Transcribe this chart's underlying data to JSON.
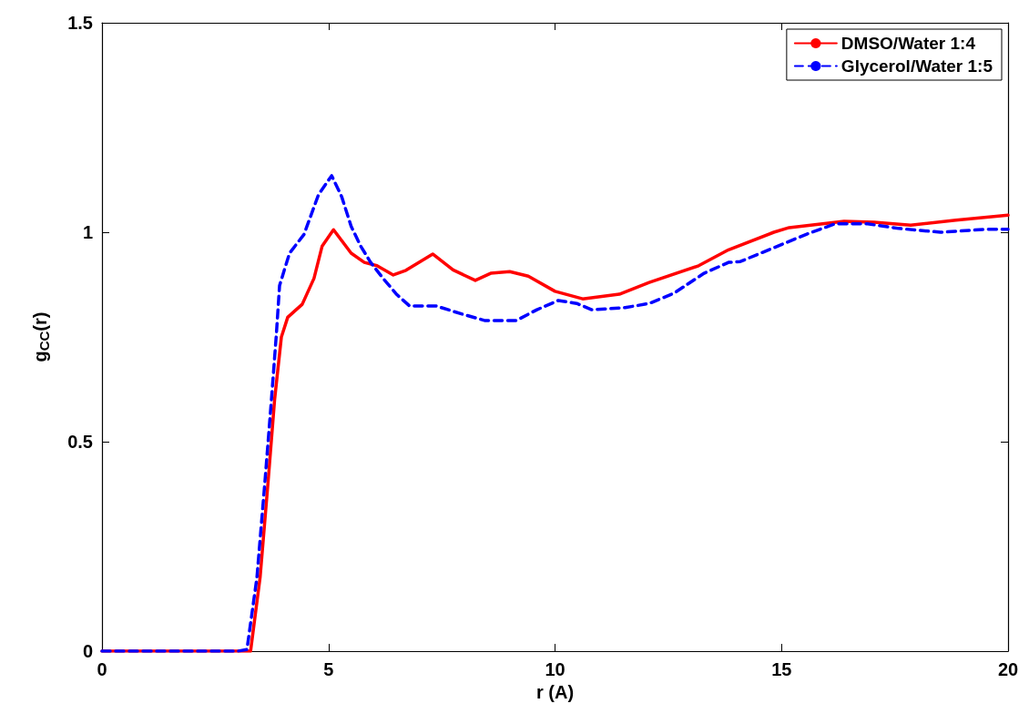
{
  "chart_data": {
    "type": "line",
    "xlabel": "r (A)",
    "ylabel": "g$_{CC}$(r)",
    "xlim": [
      0,
      20
    ],
    "xticks": [
      0,
      5,
      10,
      15,
      20
    ],
    "ylim": [
      0,
      1.5
    ],
    "yticks": [
      0,
      0.5,
      1,
      1.5
    ],
    "grid": false,
    "legend": "top right",
    "marker": "none",
    "series": [
      {
        "name": "DMSO/Water 1:4",
        "color": "#ff0000",
        "line_style": "solid",
        "x": [
          0,
          1,
          2,
          3,
          3.28,
          3.49,
          3.67,
          3.81,
          3.96,
          4.1,
          4.42,
          4.68,
          4.86,
          5.11,
          5.5,
          5.79,
          6.07,
          6.43,
          6.71,
          7.3,
          7.75,
          8.24,
          8.58,
          9.0,
          9.41,
          10.0,
          10.61,
          11.42,
          12.08,
          13.17,
          13.83,
          14.83,
          15.17,
          16.38,
          17.04,
          17.85,
          18.85,
          20
        ],
        "values": [
          0,
          0,
          0,
          0,
          0,
          0.176,
          0.409,
          0.6,
          0.75,
          0.797,
          0.828,
          0.89,
          0.967,
          1.006,
          0.95,
          0.928,
          0.92,
          0.898,
          0.909,
          0.948,
          0.91,
          0.885,
          0.902,
          0.906,
          0.895,
          0.859,
          0.841,
          0.852,
          0.88,
          0.92,
          0.958,
          1.0,
          1.011,
          1.026,
          1.024,
          1.017,
          1.029,
          1.041
        ]
      },
      {
        "name": "Glycerol/Water 1:5",
        "color": "#0000ff",
        "line_style": "dashed",
        "x": [
          0,
          1,
          2,
          3,
          3.2,
          3.42,
          3.6,
          3.74,
          3.85,
          3.92,
          4.14,
          4.46,
          4.78,
          5.07,
          5.29,
          5.5,
          5.71,
          5.93,
          6.21,
          6.51,
          6.79,
          7.37,
          7.97,
          8.46,
          9.14,
          9.6,
          10.07,
          10.48,
          10.81,
          11.55,
          12.08,
          12.62,
          13.29,
          13.83,
          14.09,
          14.83,
          15.57,
          16.18,
          16.9,
          17.59,
          18.51,
          19.52,
          20
        ],
        "values": [
          0,
          0,
          0,
          0,
          0.004,
          0.176,
          0.409,
          0.6,
          0.758,
          0.873,
          0.95,
          0.995,
          1.09,
          1.135,
          1.085,
          1.014,
          0.967,
          0.928,
          0.889,
          0.851,
          0.824,
          0.824,
          0.804,
          0.789,
          0.789,
          0.815,
          0.837,
          0.83,
          0.815,
          0.82,
          0.83,
          0.854,
          0.902,
          0.928,
          0.93,
          0.963,
          0.996,
          1.02,
          1.02,
          1.009,
          1.0,
          1.007,
          1.007
        ]
      }
    ]
  }
}
